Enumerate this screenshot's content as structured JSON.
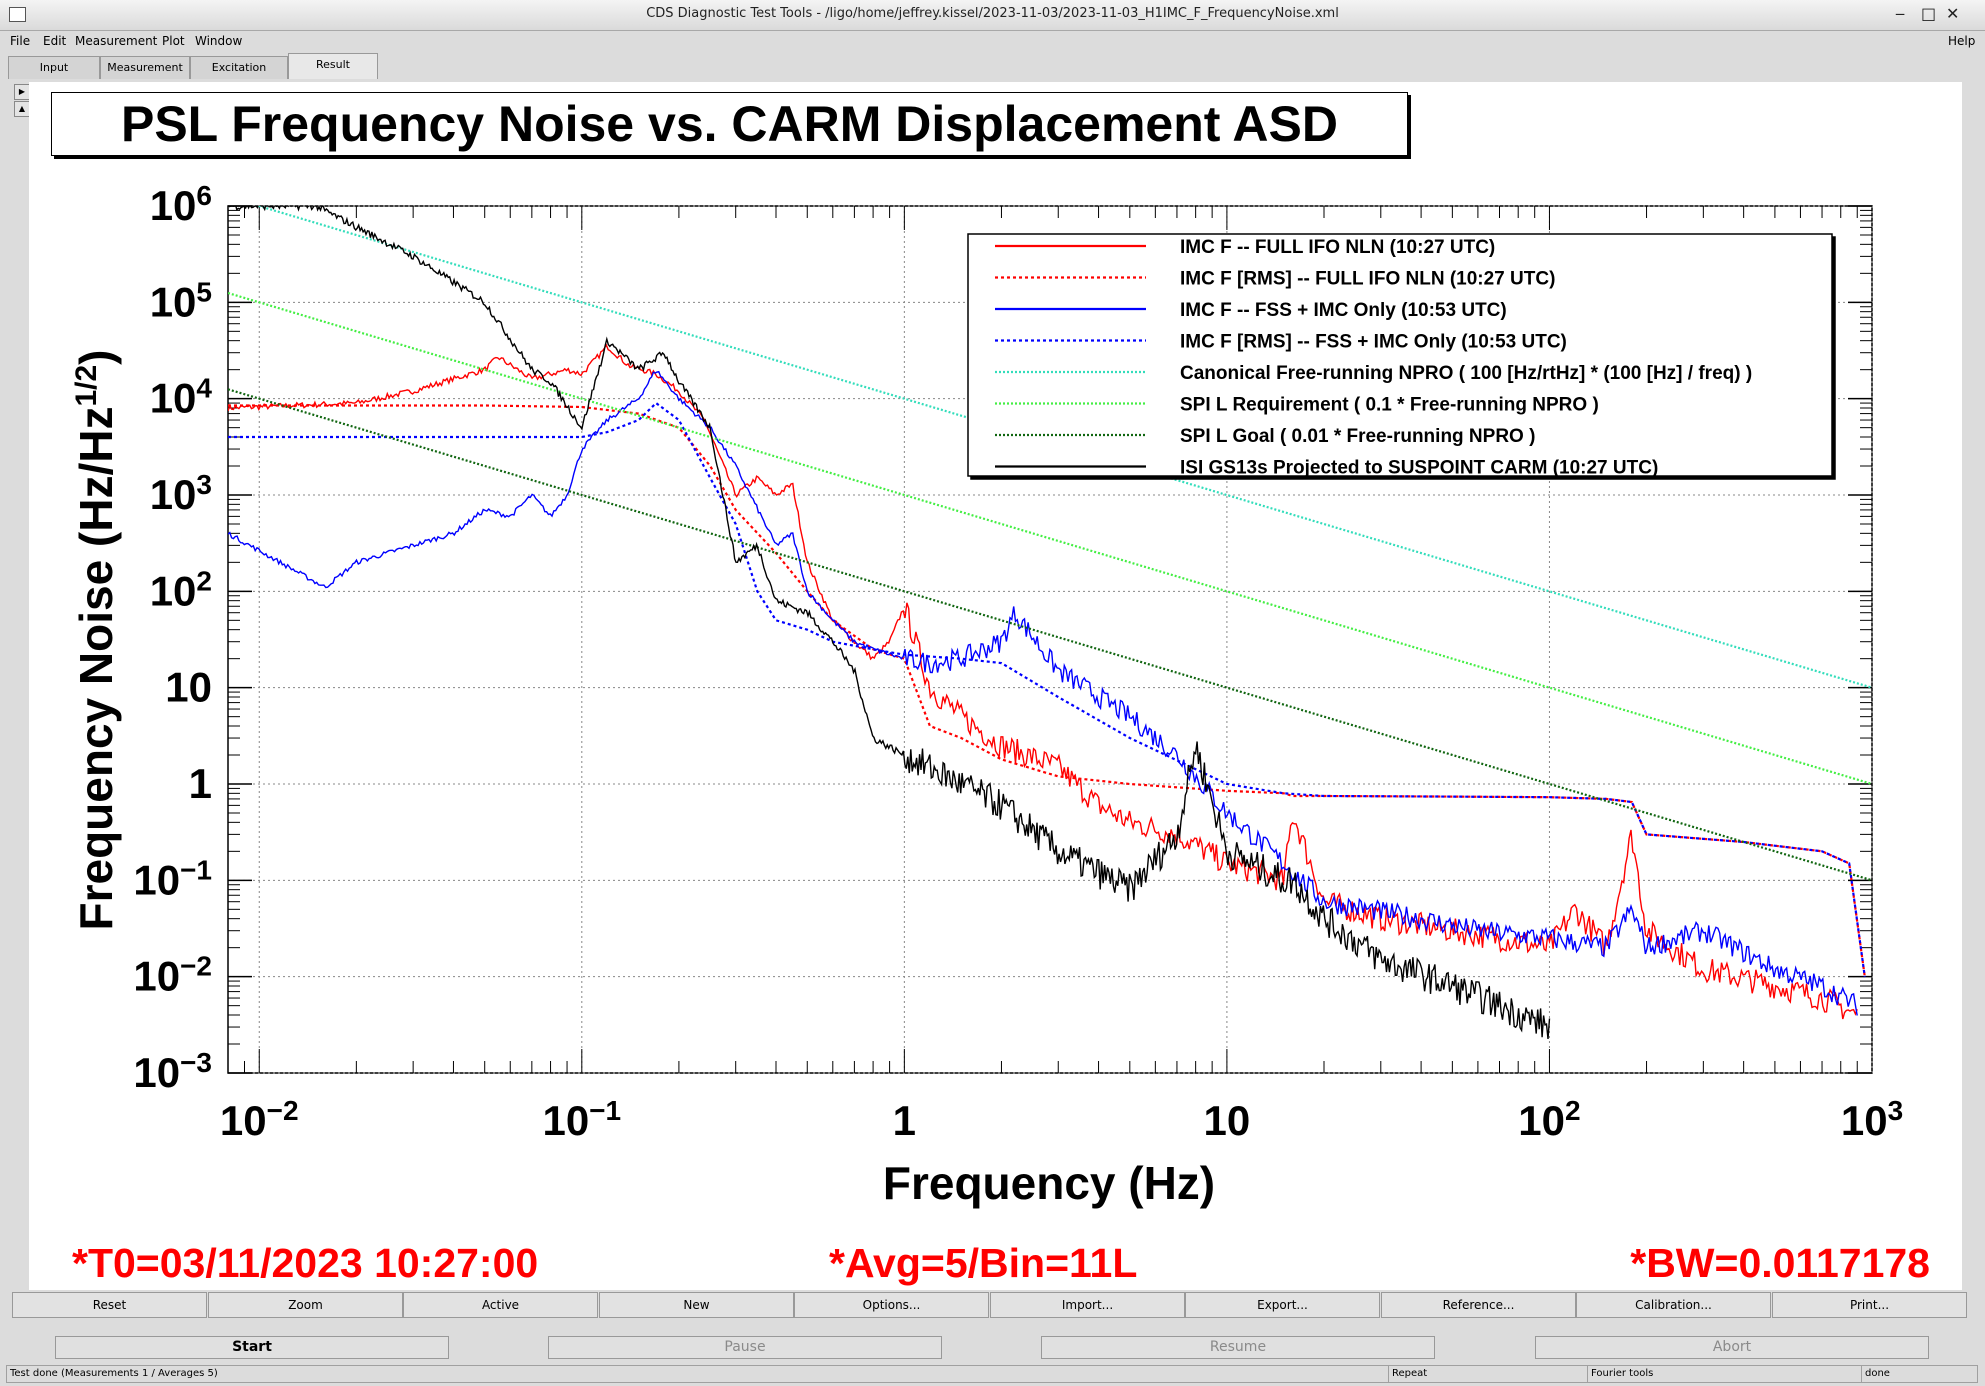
{
  "window": {
    "title": "CDS Diagnostic Test Tools - /ligo/home/jeffrey.kissel/2023-11-03/2023-11-03_H1IMC_F_FrequencyNoise.xml",
    "min": "‒",
    "max": "□",
    "close": "✕"
  },
  "menu": {
    "file": "File",
    "edit": "Edit",
    "measurement": "Measurement",
    "plot": "Plot",
    "window": "Window",
    "help": "Help"
  },
  "tabs": {
    "input": "Input",
    "measurement": "Measurement",
    "excitation": "Excitation",
    "result": "Result"
  },
  "plot": {
    "title": "PSL Frequency Noise vs. CARM Displacement ASD",
    "ylabel_prefix": "Frequency Noise (Hz/Hz",
    "ylabel_sup": "1/2",
    "ylabel_suffix": ")",
    "xlabel": "Frequency (Hz)",
    "info_t0": "*T0=03/11/2023 10:27:00",
    "info_avg": "*Avg=5/Bin=11L",
    "info_bw": "*BW=0.0117178",
    "colors": {
      "info": "#ff0000",
      "imcf": "#ff0000",
      "fss": "#0000ff",
      "npro": "#33ddbb",
      "req": "#44ee44",
      "goal": "#116611",
      "isi": "#000000",
      "rms_high": "#aa22aa"
    }
  },
  "chart_data": {
    "type": "line",
    "xscale": "log",
    "yscale": "log",
    "xlim": [
      0.008,
      1000
    ],
    "ylim": [
      0.001,
      1000000
    ],
    "x_ticks": [
      {
        "value": 0.01,
        "label": "10",
        "exp": "−2"
      },
      {
        "value": 0.1,
        "label": "10",
        "exp": "−1"
      },
      {
        "value": 1,
        "label": "1",
        "exp": ""
      },
      {
        "value": 10,
        "label": "10",
        "exp": ""
      },
      {
        "value": 100,
        "label": "10",
        "exp": "2"
      },
      {
        "value": 1000,
        "label": "10",
        "exp": "3"
      }
    ],
    "y_ticks": [
      {
        "value": 1000000,
        "label": "10",
        "exp": "6"
      },
      {
        "value": 100000,
        "label": "10",
        "exp": "5"
      },
      {
        "value": 10000,
        "label": "10",
        "exp": "4"
      },
      {
        "value": 1000,
        "label": "10",
        "exp": "3"
      },
      {
        "value": 100,
        "label": "10",
        "exp": "2"
      },
      {
        "value": 10,
        "label": "10",
        "exp": ""
      },
      {
        "value": 1,
        "label": "1",
        "exp": ""
      },
      {
        "value": 0.1,
        "label": "10",
        "exp": "−1"
      },
      {
        "value": 0.01,
        "label": "10",
        "exp": "−2"
      },
      {
        "value": 0.001,
        "label": "10",
        "exp": "−3"
      }
    ],
    "grid": true,
    "legend_position": "top-right",
    "series": [
      {
        "name": "IMC F -- FULL IFO NLN (10:27 UTC)",
        "color": "#ff0000",
        "dash": "solid",
        "jitter": 0.12,
        "x": [
          0.008,
          0.02,
          0.03,
          0.05,
          0.055,
          0.07,
          0.09,
          0.1,
          0.12,
          0.14,
          0.17,
          0.2,
          0.24,
          0.3,
          0.35,
          0.4,
          0.45,
          0.5,
          0.6,
          0.7,
          0.8,
          0.9,
          1.0,
          1.2,
          1.5,
          2,
          3,
          4,
          5,
          7,
          10,
          15,
          16,
          20,
          30,
          50,
          70,
          100,
          120,
          150,
          180,
          200,
          300,
          500,
          700,
          900
        ],
        "y": [
          8000,
          9000,
          12000,
          20000,
          27000,
          16000,
          20000,
          18000,
          35000,
          22000,
          18000,
          12000,
          6000,
          1000,
          1500,
          1000,
          1300,
          200,
          50,
          30,
          20,
          30,
          70,
          10,
          5,
          2.5,
          1.5,
          0.6,
          0.4,
          0.3,
          0.15,
          0.1,
          0.5,
          0.06,
          0.04,
          0.03,
          0.025,
          0.02,
          0.05,
          0.02,
          0.3,
          0.03,
          0.012,
          0.008,
          0.006,
          0.004
        ]
      },
      {
        "name": "IMC F [RMS] -- FULL IFO NLN (10:27 UTC)",
        "color": "#ff0000",
        "dash": "3,3",
        "jitter": 0,
        "x": [
          0.008,
          0.05,
          0.1,
          0.15,
          0.2,
          0.25,
          0.3,
          0.4,
          0.5,
          0.6,
          0.8,
          1.0,
          1.2,
          1.5,
          2,
          3,
          5,
          10,
          15,
          16,
          20,
          50,
          100,
          150,
          180,
          200,
          400,
          700,
          850,
          950
        ],
        "y": [
          8500,
          8500,
          8200,
          7000,
          5000,
          2000,
          700,
          250,
          100,
          50,
          25,
          20,
          4,
          3,
          1.8,
          1.2,
          1.0,
          0.85,
          0.8,
          0.75,
          0.75,
          0.74,
          0.73,
          0.7,
          0.65,
          0.3,
          0.25,
          0.2,
          0.15,
          0.01
        ]
      },
      {
        "name": "IMC F -- FSS + IMC Only (10:53 UTC)",
        "color": "#0000ff",
        "dash": "solid",
        "jitter": 0.1,
        "x": [
          0.008,
          0.016,
          0.02,
          0.04,
          0.05,
          0.06,
          0.07,
          0.08,
          0.09,
          0.1,
          0.12,
          0.15,
          0.17,
          0.2,
          0.25,
          0.3,
          0.4,
          0.45,
          0.5,
          0.6,
          0.7,
          0.8,
          1.0,
          1.2,
          1.5,
          2.0,
          2.2,
          3,
          5,
          7,
          10,
          15,
          20,
          40,
          60,
          100,
          150,
          180,
          200,
          300,
          500,
          700,
          900
        ],
        "y": [
          400,
          110,
          200,
          400,
          700,
          600,
          1000,
          600,
          1000,
          3000,
          6000,
          10000,
          20000,
          10000,
          5000,
          2000,
          300,
          400,
          100,
          50,
          30,
          25,
          20,
          18,
          20,
          30,
          60,
          15,
          5,
          2,
          0.5,
          0.15,
          0.06,
          0.04,
          0.03,
          0.025,
          0.02,
          0.05,
          0.02,
          0.03,
          0.012,
          0.008,
          0.005
        ]
      },
      {
        "name": "IMC F [RMS] -- FSS + IMC Only (10:53 UTC)",
        "color": "#0000ff",
        "dash": "3,3",
        "jitter": 0,
        "x": [
          0.008,
          0.05,
          0.1,
          0.12,
          0.15,
          0.17,
          0.2,
          0.25,
          0.3,
          0.35,
          0.4,
          0.5,
          0.6,
          0.8,
          1.0,
          1.5,
          2,
          3,
          5,
          10,
          15,
          20,
          50,
          100,
          150,
          180,
          200,
          400,
          700,
          850,
          950
        ],
        "y": [
          4000,
          4000,
          4000,
          4500,
          6000,
          9000,
          6000,
          1500,
          500,
          100,
          50,
          40,
          30,
          25,
          22,
          20,
          18,
          8,
          3,
          1.0,
          0.8,
          0.75,
          0.74,
          0.73,
          0.7,
          0.65,
          0.3,
          0.25,
          0.2,
          0.15,
          0.01
        ]
      },
      {
        "name": "Canonical Free-running NPRO ( 100 [Hz/rtHz] * (100 [Hz] / freq) )",
        "color": "#33ddbb",
        "dash": "2,2",
        "jitter": 0,
        "x": [
          0.008,
          1000
        ],
        "y": [
          1250000,
          10
        ]
      },
      {
        "name": "SPI L Requirement ( 0.1 * Free-running NPRO )",
        "color": "#44ee44",
        "dash": "2,2",
        "jitter": 0,
        "x": [
          0.008,
          1000
        ],
        "y": [
          125000,
          1
        ]
      },
      {
        "name": "SPI L Goal ( 0.01 * Free-running NPRO )",
        "color": "#116611",
        "dash": "2,2",
        "jitter": 0,
        "x": [
          0.008,
          1000
        ],
        "y": [
          12500,
          0.1
        ]
      },
      {
        "name": "ISI GS13s Projected to SUSPOINT CARM (10:27 UTC)",
        "color": "#000000",
        "dash": "solid",
        "jitter": 0.15,
        "x": [
          0.008,
          0.015,
          0.03,
          0.05,
          0.07,
          0.08,
          0.1,
          0.12,
          0.15,
          0.18,
          0.2,
          0.25,
          0.3,
          0.35,
          0.4,
          0.5,
          0.6,
          0.7,
          0.8,
          1.0,
          1.5,
          2,
          3,
          5,
          7,
          8,
          10,
          15,
          16,
          20,
          30,
          50,
          70,
          100
        ],
        "y": [
          1000000,
          1000000,
          300000,
          100000,
          20000,
          15000,
          5000,
          40000,
          20000,
          30000,
          15000,
          5000,
          200,
          300,
          80,
          60,
          30,
          15,
          3,
          2,
          1,
          0.6,
          0.2,
          0.08,
          0.3,
          2.5,
          0.2,
          0.1,
          0.1,
          0.04,
          0.015,
          0.008,
          0.005,
          0.003
        ]
      }
    ]
  },
  "buttons": {
    "reset": "Reset",
    "zoom": "Zoom",
    "active": "Active",
    "new": "New",
    "options": "Options...",
    "import": "Import...",
    "export": "Export...",
    "reference": "Reference...",
    "calibration": "Calibration...",
    "print": "Print..."
  },
  "controls": {
    "start": "Start",
    "pause": "Pause",
    "resume": "Resume",
    "abort": "Abort"
  },
  "status": {
    "message": "Test done (Measurements 1 / Averages 5)",
    "repeat": "Repeat",
    "tools": "Fourier tools",
    "state": "done"
  }
}
